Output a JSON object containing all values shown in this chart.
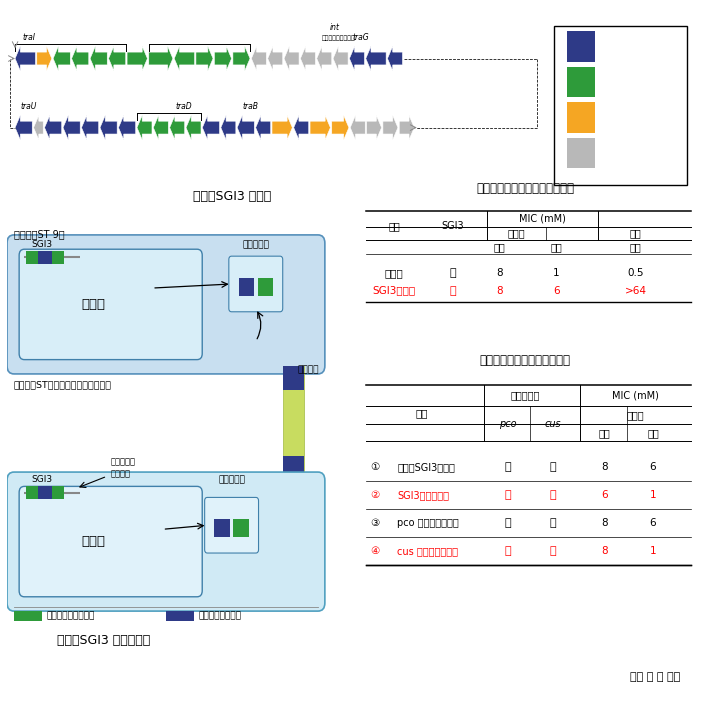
{
  "title_fig1": "図１　SGI3 の構造",
  "title_fig2": "図２　SGI3 の伝達機構",
  "title_table1": "表１　銅とヒ素に対する抵抗性",
  "title_table2": "表２　各種変異株の銅抵抗性",
  "colors": {
    "dark_blue": "#2E3A87",
    "green": "#2E9B3A",
    "orange": "#F5A623",
    "gray": "#B8B8B8",
    "light_blue_bg": "#C8DFF0",
    "lighter_blue_bg": "#D8EEF8",
    "recipient_bg": "#D0EAF5",
    "recipient_chr": "#E0F2FA",
    "red": "#CC0000",
    "connector_green": "#AACC44",
    "connector_blue": "#2E3A87"
  },
  "table1_rows": [
    {
      "name": "受容菌",
      "color": "black",
      "sgi3": "－",
      "aerobic_cu": "8",
      "anaerobic_cu": "1",
      "aerobic_as": "0.5"
    },
    {
      "name": "SGI3伝達株",
      "color": "red",
      "sgi3": "＋",
      "aerobic_cu": "8",
      "anaerobic_cu": "6",
      "aerobic_as": ">64"
    }
  ],
  "table2_rows": [
    {
      "num": "①",
      "name": "親株（SGI3保有）",
      "color": "black",
      "pco": "＋",
      "cus": "＋",
      "aerobic": "8",
      "anaerobic": "6"
    },
    {
      "num": "②",
      "name": "SGI3欠失変異株",
      "color": "red",
      "pco": "－",
      "cus": "－",
      "aerobic": "6",
      "anaerobic": "1"
    },
    {
      "num": "③",
      "name": "pco 領域欠失変異株",
      "color": "black",
      "pco": "－",
      "cus": "＋",
      "aerobic": "8",
      "anaerobic": "6"
    },
    {
      "num": "④",
      "name": "cus 領域欠失変異株",
      "color": "red",
      "pco": "＋",
      "cus": "－",
      "aerobic": "8",
      "anaerobic": "1"
    }
  ],
  "author": "（楠 本 正 博）",
  "fig1_row1": {
    "colors": [
      "#2E3A87",
      "#F5A623",
      "#2E9B3A",
      "#2E9B3A",
      "#2E9B3A",
      "#2E9B3A",
      "#2E9B3A",
      "#2E9B3A",
      "#2E9B3A",
      "#2E9B3A",
      "#2E9B3A",
      "#2E9B3A",
      "#B8B8B8",
      "#B8B8B8",
      "#B8B8B8",
      "#B8B8B8",
      "#B8B8B8",
      "#B8B8B8",
      "#2E3A87",
      "#2E3A87",
      "#2E3A87"
    ],
    "dirs": [
      -1,
      1,
      -1,
      -1,
      -1,
      -1,
      1,
      1,
      -1,
      1,
      1,
      1,
      -1,
      -1,
      -1,
      -1,
      -1,
      -1,
      -1,
      -1,
      -1
    ],
    "widths": [
      3.8,
      2.8,
      3.2,
      3.2,
      3.2,
      3.2,
      3.8,
      4.5,
      3.8,
      3.2,
      3.2,
      3.2,
      2.8,
      2.8,
      2.8,
      2.8,
      2.8,
      2.8,
      2.8,
      3.8,
      2.8
    ]
  },
  "fig1_row2": {
    "colors": [
      "#2E3A87",
      "#B8B8B8",
      "#2E3A87",
      "#2E3A87",
      "#2E3A87",
      "#2E3A87",
      "#2E3A87",
      "#2E9B3A",
      "#2E9B3A",
      "#2E9B3A",
      "#2E9B3A",
      "#2E3A87",
      "#2E3A87",
      "#2E3A87",
      "#2E3A87",
      "#F5A623",
      "#2E3A87",
      "#F5A623",
      "#F5A623",
      "#B8B8B8",
      "#B8B8B8",
      "#B8B8B8",
      "#B8B8B8"
    ],
    "dirs": [
      -1,
      -1,
      -1,
      -1,
      -1,
      -1,
      -1,
      -1,
      -1,
      -1,
      -1,
      -1,
      -1,
      -1,
      -1,
      1,
      -1,
      1,
      1,
      -1,
      1,
      1,
      1
    ],
    "widths": [
      3.2,
      1.8,
      3.2,
      3.2,
      3.2,
      3.2,
      3.2,
      2.8,
      2.8,
      2.8,
      2.8,
      3.2,
      2.8,
      3.2,
      2.8,
      3.8,
      2.8,
      3.8,
      3.2,
      2.8,
      2.8,
      2.8,
      2.8
    ]
  },
  "legend_colors": [
    "#2E3A87",
    "#2E9B3A",
    "#F5A623",
    "#B8B8B8"
  ]
}
